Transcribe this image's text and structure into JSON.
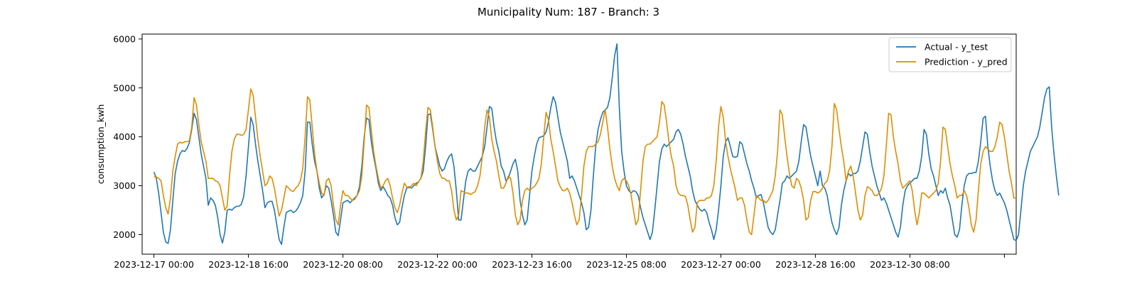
{
  "chart_data": {
    "type": "line",
    "title": "Municipality Num: 187 - Branch: 3",
    "xlabel": "",
    "ylabel": "consumption_kwh",
    "ylim": [
      1600,
      6100
    ],
    "xlim": [
      "2023-12-16 19:00",
      "2024-01-01 05:00"
    ],
    "grid": false,
    "legend": "top-right",
    "x_start": "2023-12-17 00:00",
    "x_step_hours": 1,
    "x_ticks": [
      {
        "label": "2023-12-17 00:00",
        "at": "2023-12-17 00:00"
      },
      {
        "label": "2023-12-18 16:00",
        "at": "2023-12-18 16:00"
      },
      {
        "label": "2023-12-20 08:00",
        "at": "2023-12-20 08:00"
      },
      {
        "label": "2023-12-22 00:00",
        "at": "2023-12-22 00:00"
      },
      {
        "label": "2023-12-23 16:00",
        "at": "2023-12-23 16:00"
      },
      {
        "label": "2023-12-25 08:00",
        "at": "2023-12-25 08:00"
      },
      {
        "label": "2023-12-27 00:00",
        "at": "2023-12-27 00:00"
      },
      {
        "label": "2023-12-28 16:00",
        "at": "2023-12-28 16:00"
      },
      {
        "label": "2023-12-30 08:00",
        "at": "2023-12-30 08:00"
      },
      {
        "label": "",
        "at": "2024-01-01 00:00"
      }
    ],
    "y_ticks": [
      2000,
      3000,
      4000,
      5000,
      6000
    ],
    "series": [
      {
        "name": "Actual - y_test",
        "color": "#1f77b4",
        "values": [
          3280,
          3150,
          2850,
          2450,
          2050,
          1850,
          1820,
          2100,
          2700,
          3250,
          3500,
          3650,
          3720,
          3700,
          3760,
          3880,
          4150,
          4480,
          4350,
          4000,
          3650,
          3400,
          3150,
          2600,
          2750,
          2700,
          2600,
          2350,
          2000,
          1830,
          2050,
          2500,
          2520,
          2500,
          2550,
          2580,
          2580,
          2620,
          2780,
          3200,
          3800,
          4400,
          4250,
          3850,
          3500,
          3200,
          2900,
          2550,
          2650,
          2680,
          2680,
          2500,
          2200,
          1900,
          1800,
          2150,
          2450,
          2480,
          2500,
          2450,
          2480,
          2550,
          2650,
          2800,
          3300,
          4300,
          4300,
          3850,
          3500,
          3300,
          2950,
          2750,
          2820,
          3000,
          2950,
          2700,
          2400,
          2050,
          1980,
          2300,
          2650,
          2680,
          2700,
          2650,
          2700,
          2750,
          2800,
          2980,
          3400,
          4000,
          4380,
          4350,
          3900,
          3600,
          3350,
          3050,
          2900,
          2980,
          2900,
          2800,
          2750,
          2600,
          2350,
          2200,
          2250,
          2550,
          2800,
          2950,
          2980,
          2950,
          3000,
          3050,
          3080,
          3150,
          3300,
          3800,
          4450,
          4470,
          4150,
          3800,
          3600,
          3400,
          3300,
          3350,
          3500,
          3600,
          3650,
          3400,
          2900,
          2300,
          2300,
          2700,
          3100,
          3300,
          3350,
          3300,
          3300,
          3400,
          3500,
          3600,
          3800,
          4200,
          4620,
          4580,
          4200,
          3900,
          3700,
          3400,
          3300,
          3100,
          3150,
          3300,
          3450,
          3540,
          3300,
          2700,
          2400,
          2200,
          2300,
          2800,
          3300,
          3600,
          3850,
          3980,
          4000,
          4020,
          4100,
          4300,
          4600,
          4820,
          4700,
          4400,
          4100,
          3900,
          3700,
          3500,
          3150,
          3200,
          3100,
          2950,
          2800,
          2650,
          2450,
          2100,
          2150,
          2500,
          3200,
          3800,
          4150,
          4350,
          4500,
          4550,
          4600,
          4800,
          5200,
          5650,
          5900,
          4600,
          3700,
          3300,
          3000,
          2900,
          2850,
          2900,
          2880,
          2800,
          2550,
          2350,
          2200,
          2050,
          1900,
          2050,
          2500,
          3000,
          3500,
          3750,
          3850,
          3800,
          3850,
          3900,
          3950,
          4100,
          4150,
          4050,
          3850,
          3600,
          3400,
          3200,
          2900,
          2700,
          2600,
          2520,
          2480,
          2520,
          2450,
          2250,
          2100,
          1900,
          2100,
          2500,
          3000,
          3600,
          3900,
          3980,
          3800,
          3600,
          3580,
          3600,
          3900,
          3850,
          3650,
          3450,
          3300,
          3100,
          2950,
          2750,
          2800,
          2820,
          2650,
          2400,
          2150,
          2050,
          2000,
          2100,
          2400,
          2700,
          3050,
          3100,
          3200,
          3150,
          3200,
          3250,
          3300,
          3500,
          3900,
          4250,
          4200,
          3900,
          3600,
          3400,
          3200,
          3000,
          3300,
          3000,
          2950,
          2800,
          2500,
          2250,
          2100,
          2000,
          2150,
          2600,
          2900,
          3100,
          3250,
          3200,
          3250,
          3250,
          3300,
          3500,
          3800,
          4100,
          4050,
          3700,
          3400,
          3200,
          3000,
          2850,
          2700,
          2750,
          2650,
          2500,
          2350,
          2200,
          2050,
          1950,
          2150,
          2600,
          2900,
          3000,
          3050,
          3100,
          3150,
          3150,
          3300,
          3600,
          4150,
          4050,
          3650,
          3350,
          3200,
          3000,
          2800,
          2900,
          2850,
          2950,
          2750,
          2600,
          2300,
          2000,
          1950,
          2100,
          2600,
          3000,
          3200,
          3250,
          3250,
          3270,
          3270,
          3500,
          3900,
          4380,
          4420,
          3800,
          3400,
          3100,
          2900,
          2800,
          2850,
          2750,
          2650,
          2500,
          2300,
          2100,
          1900,
          1880,
          2000,
          2500,
          3000,
          3300,
          3500,
          3700,
          3800,
          3900,
          4000,
          4200,
          4500,
          4800,
          4980,
          5020,
          4200,
          3650,
          3200,
          2800
        ]
      },
      {
        "name": "Prediction - y_pred",
        "color": "#e08c00",
        "values": [
          3180,
          3180,
          3150,
          3100,
          2800,
          2550,
          2420,
          2750,
          3300,
          3600,
          3850,
          3890,
          3870,
          3900,
          3900,
          3920,
          4200,
          4800,
          4650,
          4250,
          3900,
          3700,
          3500,
          3150,
          3150,
          3150,
          3100,
          3080,
          3000,
          2750,
          2500,
          2580,
          3200,
          3700,
          3950,
          4050,
          4050,
          4030,
          4050,
          4150,
          4550,
          4980,
          4850,
          4400,
          3950,
          3600,
          3300,
          3000,
          3050,
          3200,
          3150,
          2950,
          2650,
          2380,
          2500,
          2750,
          3000,
          2950,
          2900,
          2880,
          2950,
          3000,
          3100,
          3350,
          4000,
          4820,
          4750,
          4200,
          3650,
          3300,
          3050,
          2850,
          2800,
          3100,
          3150,
          3000,
          2600,
          2300,
          2200,
          2600,
          2900,
          2800,
          2800,
          2750,
          2700,
          2720,
          2800,
          2900,
          3200,
          3900,
          4650,
          4600,
          4150,
          3700,
          3400,
          3150,
          2950,
          3000,
          3100,
          3150,
          3000,
          2750,
          2550,
          2450,
          2600,
          2850,
          3050,
          2980,
          2950,
          3000,
          3050,
          3000,
          3080,
          3150,
          3500,
          4100,
          4600,
          4550,
          4200,
          3800,
          3500,
          3250,
          3150,
          3150,
          3100,
          3100,
          2900,
          2500,
          2300,
          2400,
          2900,
          2880,
          2850,
          2850,
          2820,
          2850,
          2880,
          3000,
          3200,
          3600,
          4200,
          4550,
          4400,
          3950,
          3700,
          3500,
          3200,
          2950,
          2950,
          3050,
          3200,
          3150,
          2850,
          2400,
          2200,
          2300,
          2700,
          2900,
          2950,
          2900,
          2950,
          2980,
          3050,
          3150,
          3450,
          4000,
          4500,
          4350,
          3950,
          3700,
          3400,
          3100,
          2980,
          2900,
          2900,
          2950,
          2850,
          2650,
          2400,
          2200,
          2300,
          2800,
          3400,
          3700,
          3800,
          3800,
          3800,
          3850,
          3900,
          4050,
          4300,
          4550,
          4200,
          3750,
          3400,
          3150,
          3000,
          2900,
          3100,
          3150,
          3100,
          3000,
          2800,
          2500,
          2200,
          2300,
          2900,
          3500,
          3800,
          3850,
          3850,
          3900,
          3950,
          4000,
          4300,
          4720,
          4650,
          4300,
          3900,
          3600,
          3400,
          3000,
          2850,
          2800,
          2800,
          2780,
          2600,
          2300,
          2050,
          2150,
          2650,
          2700,
          2700,
          2700,
          2750,
          2750,
          2800,
          3000,
          3500,
          4200,
          4620,
          4400,
          3900,
          3600,
          3350,
          3150,
          2950,
          2700,
          2750,
          2750,
          2600,
          2300,
          2050,
          2000,
          2400,
          2800,
          2750,
          2700,
          2700,
          2650,
          2700,
          2800,
          2900,
          3200,
          3700,
          4550,
          4450,
          4000,
          3600,
          3250,
          3000,
          2950,
          3150,
          3100,
          2950,
          2700,
          2300,
          2350,
          2700,
          2880,
          2880,
          2850,
          2880,
          2950,
          3050,
          3100,
          3300,
          3800,
          4680,
          4550,
          4150,
          3800,
          3500,
          3100,
          3300,
          3400,
          3200,
          2850,
          2500,
          2300,
          2400,
          2800,
          2980,
          2950,
          2900,
          2800,
          2800,
          2850,
          2950,
          3200,
          3800,
          4480,
          4450,
          4000,
          3700,
          3450,
          3100,
          2950,
          3000,
          3050,
          3100,
          2900,
          2500,
          2200,
          2450,
          2850,
          2850,
          2800,
          2750,
          2800,
          2850,
          2900,
          3050,
          3500,
          4200,
          4150,
          3800,
          3450,
          3200,
          3000,
          2750,
          2800,
          2800,
          2900,
          2800,
          2550,
          2200,
          2050,
          2300,
          2900,
          3450,
          3700,
          3800,
          3750,
          3700,
          3700,
          3800,
          4000,
          4300,
          4250,
          4000,
          3650,
          3300,
          3050,
          2750,
          2750
        ]
      }
    ]
  }
}
